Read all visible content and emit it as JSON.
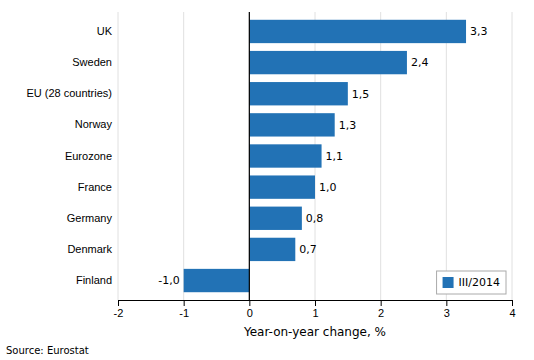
{
  "chart_data": {
    "type": "bar",
    "orientation": "horizontal",
    "categories": [
      "Finland",
      "Denmark",
      "Germany",
      "France",
      "Eurozone",
      "Norway",
      "EU (28 countries)",
      "Sweden",
      "UK"
    ],
    "series": [
      {
        "name": "III/2014",
        "color": "#2272B5",
        "values": [
          -1.0,
          0.7,
          0.8,
          1.0,
          1.1,
          1.3,
          1.5,
          2.4,
          3.3
        ],
        "value_labels": [
          "-1,0",
          "0,7",
          "0,8",
          "1,0",
          "1,1",
          "1,3",
          "1,5",
          "2,4",
          "3,3"
        ]
      }
    ],
    "data_labels": true,
    "xlabel": "Year-on-year change, %",
    "xlim": [
      -2,
      4
    ],
    "xticks": [
      -2,
      -1,
      0,
      1,
      2,
      3,
      4
    ],
    "grid": true,
    "legend": "lower right",
    "annotations": [
      "Source: Eurostat"
    ]
  }
}
